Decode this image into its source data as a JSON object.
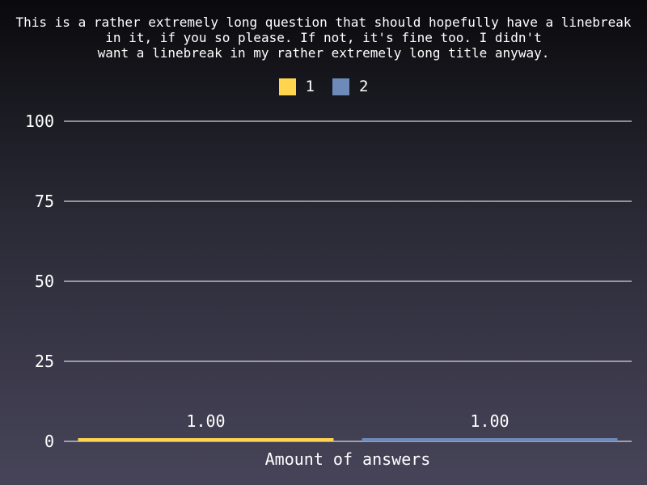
{
  "chart_data": {
    "type": "bar",
    "title": "This is a rather extremely long question that should hopefully have a linebreak\nin it, if you so please. If not, it's fine too. I didn't\nwant a linebreak in my rather extremely long title anyway.",
    "categories": [
      "1",
      "2"
    ],
    "values": [
      1,
      1
    ],
    "data_labels": [
      "1.00",
      "1.00"
    ],
    "colors": [
      "#ffd54f",
      "#6d8ab8"
    ],
    "xlabel": "Amount of answers",
    "ylabel": "",
    "ylim": [
      0,
      100
    ],
    "yticks": [
      "0",
      "25",
      "50",
      "75",
      "100"
    ],
    "ytick_values": [
      0,
      25,
      50,
      75,
      100
    ],
    "grid": true,
    "legend_position": "top-center",
    "legend": [
      {
        "label": "1",
        "color": "#ffd54f"
      },
      {
        "label": "2",
        "color": "#6d8ab8"
      }
    ]
  }
}
